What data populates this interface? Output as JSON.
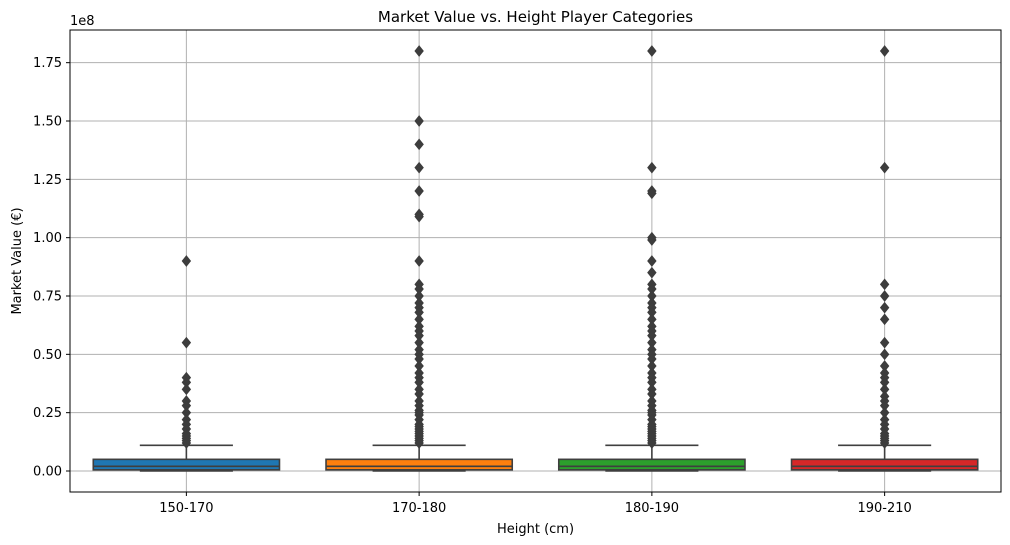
{
  "chart_data": {
    "type": "box",
    "title": "Market Value vs. Height Player Categories",
    "xlabel": "Height (cm)",
    "ylabel": "Market Value (€)",
    "y_scale_label": "1e8",
    "ylim": [
      -9000000,
      189000000
    ],
    "yticks": [
      0,
      25000000,
      50000000,
      75000000,
      100000000,
      125000000,
      150000000,
      175000000
    ],
    "ytick_labels": [
      "0.00",
      "0.25",
      "0.50",
      "0.75",
      "1.00",
      "1.25",
      "1.50",
      "1.75"
    ],
    "grid": true,
    "categories": [
      "150-170",
      "170-180",
      "180-190",
      "190-210"
    ],
    "boxes": [
      {
        "category": "150-170",
        "color": "#1f77b4",
        "whisker_low": 0,
        "q1": 500000,
        "median": 2000000,
        "q3": 5000000,
        "whisker_high": 11000000,
        "outliers": [
          90000000,
          55000000,
          40000000,
          38000000,
          35000000,
          30000000,
          28000000,
          25000000,
          22000000,
          20000000,
          18000000,
          16000000,
          15000000,
          14000000,
          13000000,
          12000000
        ]
      },
      {
        "category": "170-180",
        "color": "#ff7f0e",
        "whisker_low": 0,
        "q1": 500000,
        "median": 2000000,
        "q3": 5000000,
        "whisker_high": 11000000,
        "outliers": [
          180000000,
          150000000,
          140000000,
          130000000,
          120000000,
          110000000,
          109000000,
          90000000,
          80000000,
          78000000,
          75000000,
          72000000,
          70000000,
          68000000,
          65000000,
          62000000,
          60000000,
          58000000,
          55000000,
          52000000,
          50000000,
          48000000,
          45000000,
          42000000,
          40000000,
          38000000,
          35000000,
          33000000,
          30000000,
          28000000,
          26000000,
          25000000,
          24000000,
          22000000,
          20000000,
          19000000,
          18000000,
          17000000,
          16000000,
          15000000,
          14000000,
          13000000,
          12000000
        ]
      },
      {
        "category": "180-190",
        "color": "#2ca02c",
        "whisker_low": 0,
        "q1": 500000,
        "median": 2000000,
        "q3": 5000000,
        "whisker_high": 11000000,
        "outliers": [
          180000000,
          130000000,
          120000000,
          119000000,
          100000000,
          99000000,
          90000000,
          85000000,
          80000000,
          78000000,
          75000000,
          72000000,
          70000000,
          68000000,
          65000000,
          62000000,
          60000000,
          58000000,
          55000000,
          52000000,
          50000000,
          48000000,
          45000000,
          42000000,
          40000000,
          38000000,
          35000000,
          33000000,
          30000000,
          28000000,
          26000000,
          25000000,
          24000000,
          22000000,
          20000000,
          19000000,
          18000000,
          17000000,
          16000000,
          15000000,
          14000000,
          13000000,
          12000000
        ]
      },
      {
        "category": "190-210",
        "color": "#d62728",
        "whisker_low": 0,
        "q1": 500000,
        "median": 2000000,
        "q3": 5000000,
        "whisker_high": 11000000,
        "outliers": [
          180000000,
          130000000,
          80000000,
          75000000,
          70000000,
          65000000,
          55000000,
          50000000,
          45000000,
          42000000,
          40000000,
          38000000,
          35000000,
          32000000,
          30000000,
          28000000,
          25000000,
          22000000,
          20000000,
          18000000,
          16000000,
          15000000,
          14000000,
          13000000,
          12000000
        ]
      }
    ]
  }
}
